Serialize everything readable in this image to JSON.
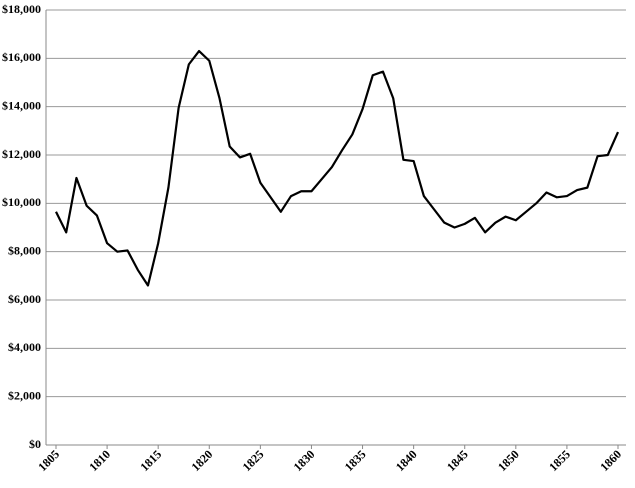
{
  "chart_data": {
    "type": "line",
    "x": [
      1805,
      1806,
      1807,
      1808,
      1809,
      1810,
      1811,
      1812,
      1813,
      1814,
      1815,
      1816,
      1817,
      1818,
      1819,
      1820,
      1821,
      1822,
      1823,
      1824,
      1825,
      1826,
      1827,
      1828,
      1829,
      1830,
      1831,
      1832,
      1833,
      1834,
      1835,
      1836,
      1837,
      1838,
      1839,
      1840,
      1841,
      1842,
      1843,
      1844,
      1845,
      1846,
      1847,
      1848,
      1849,
      1850,
      1851,
      1852,
      1853,
      1854,
      1855,
      1856,
      1857,
      1858,
      1859,
      1860
    ],
    "values": [
      9650,
      8800,
      11050,
      9900,
      9500,
      8350,
      8000,
      8050,
      7250,
      6600,
      8350,
      10650,
      13950,
      15750,
      16300,
      15900,
      14350,
      12350,
      11900,
      12050,
      10850,
      10250,
      9650,
      10300,
      10500,
      10500,
      11000,
      11500,
      12200,
      12850,
      13900,
      15300,
      15450,
      14350,
      11800,
      11750,
      10300,
      9750,
      9200,
      9000,
      9150,
      9400,
      8800,
      9200,
      9450,
      9300,
      9650,
      10000,
      10450,
      10250,
      10300,
      10550,
      10650,
      11950,
      12000,
      12950
    ],
    "color": "#000000",
    "xlim": [
      1805,
      1860
    ],
    "xticks": [
      1805,
      1810,
      1815,
      1820,
      1825,
      1830,
      1835,
      1840,
      1845,
      1850,
      1855,
      1860
    ],
    "ylim": [
      0,
      18000
    ],
    "yticks": [
      {
        "value": 0,
        "label": "$0"
      },
      {
        "value": 2000,
        "label": "$2,000"
      },
      {
        "value": 4000,
        "label": "$4,000"
      },
      {
        "value": 6000,
        "label": "$6,000"
      },
      {
        "value": 8000,
        "label": "$8,000"
      },
      {
        "value": 10000,
        "label": "$10,000"
      },
      {
        "value": 12000,
        "label": "$12,000"
      },
      {
        "value": 14000,
        "label": "$14,000"
      },
      {
        "value": 16000,
        "label": "$16,000"
      },
      {
        "value": 18000,
        "label": "$18,000"
      }
    ],
    "grid": true
  }
}
